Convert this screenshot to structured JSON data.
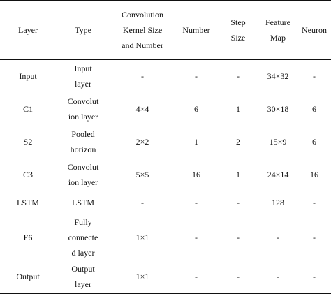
{
  "table": {
    "headers": {
      "layer": "Layer",
      "type": "Type",
      "kernel": "Convolution\nKernel Size\nand Number",
      "number": "Number",
      "step": "Step\nSize",
      "feature": "Feature\nMap",
      "neuron": "Neuron"
    },
    "rows": [
      {
        "layer": "Input",
        "type": "Input\nlayer",
        "kernel": "-",
        "number": "-",
        "step": "-",
        "feature": "34×32",
        "neuron": "-"
      },
      {
        "layer": "C1",
        "type": "Convolut\nion layer",
        "kernel": "4×4",
        "number": "6",
        "step": "1",
        "feature": "30×18",
        "neuron": "6"
      },
      {
        "layer": "S2",
        "type": "Pooled\nhorizon",
        "kernel": "2×2",
        "number": "1",
        "step": "2",
        "feature": "15×9",
        "neuron": "6"
      },
      {
        "layer": "C3",
        "type": "Convolut\nion layer",
        "kernel": "5×5",
        "number": "16",
        "step": "1",
        "feature": "24×14",
        "neuron": "16"
      },
      {
        "layer": "LSTM",
        "type": "LSTM",
        "kernel": "-",
        "number": "-",
        "step": "-",
        "feature": "128",
        "neuron": "-"
      },
      {
        "layer": "F6",
        "type": "Fully\nconnecte\nd layer",
        "kernel": "1×1",
        "number": "-",
        "step": "-",
        "feature": "-",
        "neuron": "-"
      },
      {
        "layer": "Output",
        "type": "Output\nlayer",
        "kernel": "1×1",
        "number": "-",
        "step": "-",
        "feature": "-",
        "neuron": "-"
      }
    ]
  }
}
